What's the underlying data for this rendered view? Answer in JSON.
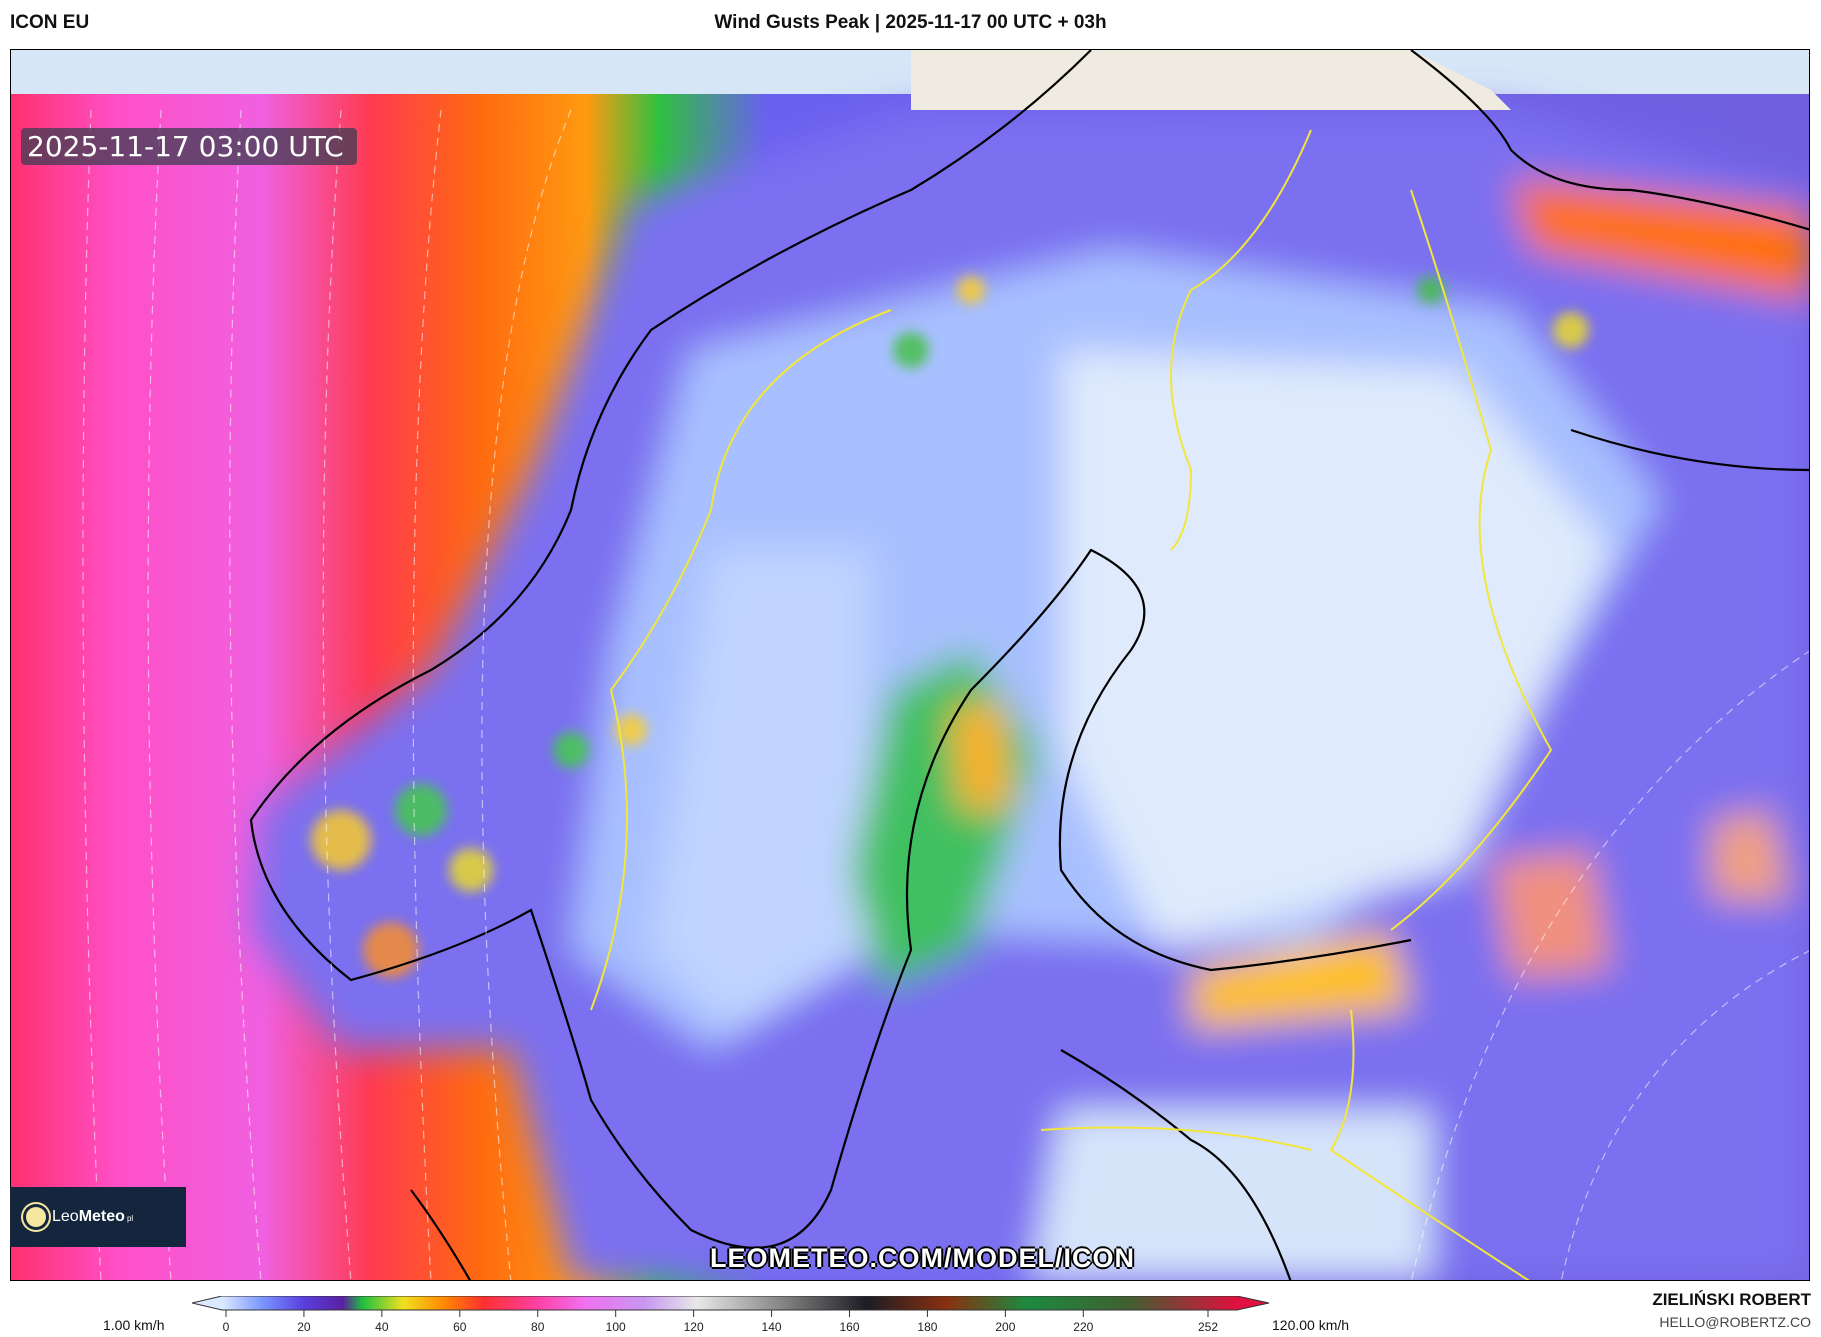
{
  "header": {
    "model": "ICON EU",
    "title": "Wind Gusts Peak | 2025-11-17 00 UTC + 03h"
  },
  "map": {
    "timestamp": "2025-11-17 03:00 UTC",
    "watermark_url": "LEOMETEO.COM/MODEL/ICON",
    "logo": {
      "name": "Leo",
      "name_bold": "Meteo",
      "suffix": "pl"
    },
    "region": "Scandinavia / Baltic",
    "variable": "wind gusts",
    "colors": {
      "no_data": "#d6e6f7",
      "land_outside": "#f0ebe0"
    }
  },
  "colorbar": {
    "min_label": "1.00 km/h",
    "max_label": "120.00 km/h",
    "ticks": [
      "0",
      "20",
      "40",
      "60",
      "80",
      "100",
      "120",
      "140",
      "160",
      "180",
      "200",
      "220",
      "252"
    ],
    "tick_values": [
      0,
      20,
      40,
      60,
      80,
      100,
      120,
      140,
      160,
      180,
      200,
      220,
      252
    ],
    "stops": [
      [
        0,
        "#dbe9ff"
      ],
      [
        10,
        "#7a96ff"
      ],
      [
        20,
        "#5a40e0"
      ],
      [
        30,
        "#5a20a0"
      ],
      [
        35,
        "#20c040"
      ],
      [
        45,
        "#f0e020"
      ],
      [
        55,
        "#ff8a00"
      ],
      [
        65,
        "#ff3030"
      ],
      [
        78,
        "#ff40a0"
      ],
      [
        90,
        "#f070f0"
      ],
      [
        105,
        "#c898f0"
      ],
      [
        118,
        "#e8e8e8"
      ],
      [
        140,
        "#808080"
      ],
      [
        160,
        "#1c1c24"
      ],
      [
        180,
        "#8a3010"
      ],
      [
        200,
        "#1c8a40"
      ],
      [
        225,
        "#406030"
      ],
      [
        252,
        "#e01040"
      ]
    ]
  },
  "credit": {
    "author": "ZIELIŃSKI ROBERT",
    "email": "HELLO@ROBERTZ.CO"
  }
}
